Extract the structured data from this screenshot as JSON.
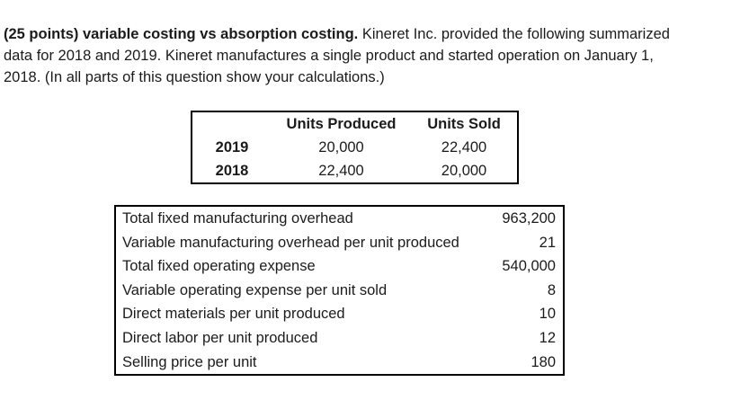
{
  "page": {
    "background": "#ffffff",
    "text_color": "#1b1b1b",
    "border_color": "#000000"
  },
  "problem": {
    "line1_bold": "(25 points) variable costing vs absorption costing.",
    "line1_rest": " Kineret Inc. provided the following summarized",
    "line2": "data for 2018 and 2019. Kineret manufactures a single product and started operation on January 1,",
    "line3": "2018. (In all parts of this question show your calculations.)"
  },
  "units_table": {
    "headers": {
      "blank": "",
      "units_produced": "Units Produced",
      "units_sold": "Units Sold"
    },
    "rows": [
      {
        "year": "2019",
        "units_produced": "20,000",
        "units_sold": "22,400"
      },
      {
        "year": "2018",
        "units_produced": "22,400",
        "units_sold": "20,000"
      }
    ]
  },
  "cost_table": {
    "rows": [
      {
        "label": "Total fixed manufacturing overhead",
        "value": "963,200"
      },
      {
        "label": "Variable manufacturing overhead per unit produced",
        "value": "21"
      },
      {
        "label": "Total fixed operating expense",
        "value": "540,000"
      },
      {
        "label": "Variable operating expense per unit sold",
        "value": "8"
      },
      {
        "label": "Direct materials per unit produced",
        "value": "10"
      },
      {
        "label": "Direct labor per unit produced",
        "value": "12"
      },
      {
        "label": "Selling price per unit",
        "value": "180"
      }
    ]
  }
}
